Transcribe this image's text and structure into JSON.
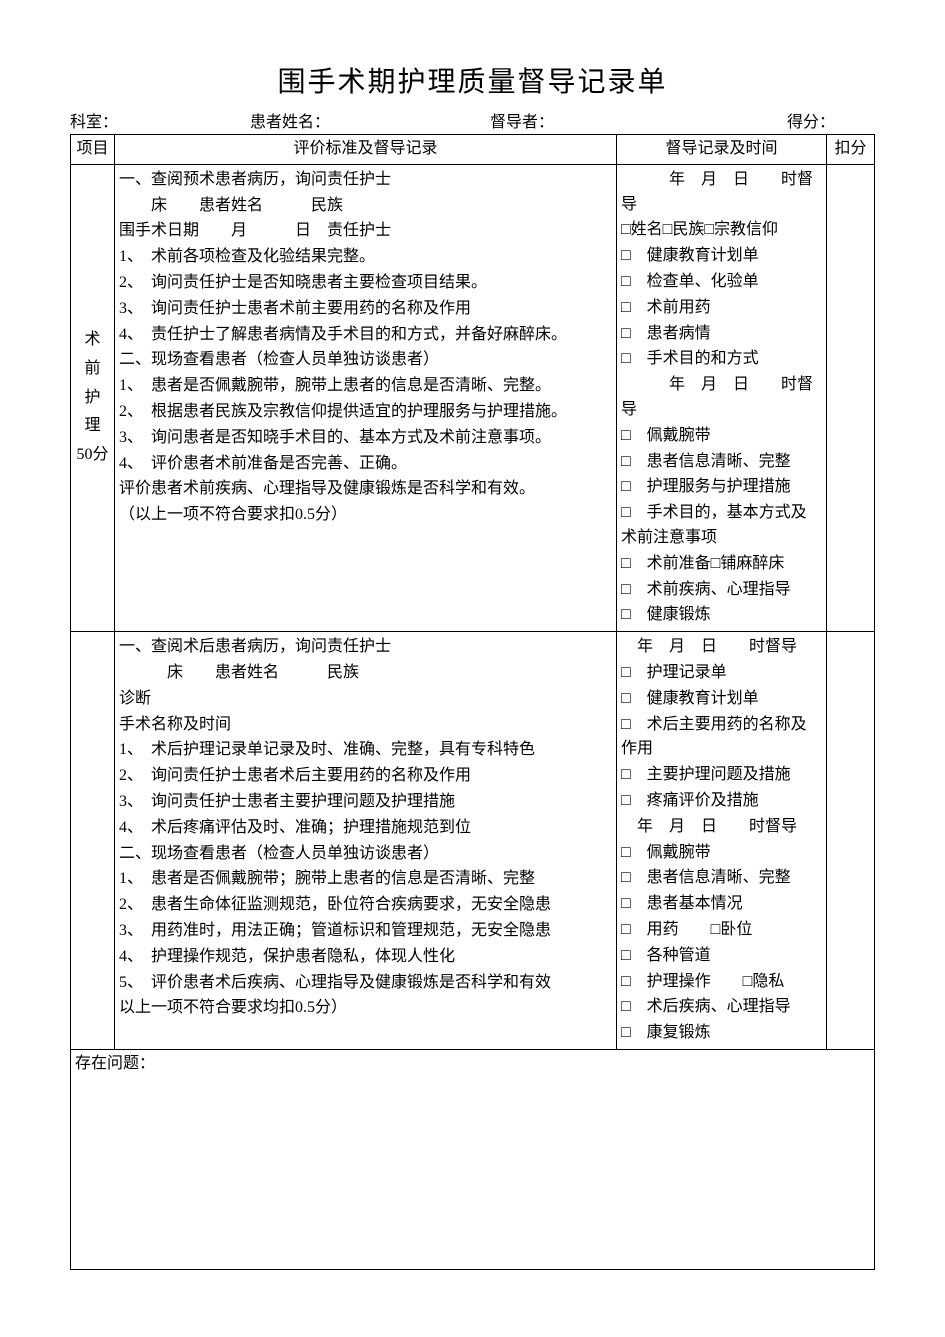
{
  "title": "围手术期护理质量督导记录单",
  "header": {
    "dept_label": "科室：",
    "patient_label": "患者姓名：",
    "supervisor_label": "督导者：",
    "score_label": "得分：",
    "underline": "＿＿"
  },
  "table_headers": {
    "project": "项目",
    "criteria": "评价标准及督导记录",
    "record": "督导记录及时间",
    "deduct": "扣分"
  },
  "section1": {
    "label_lines": [
      "术",
      "前",
      "护",
      "理",
      "50分"
    ],
    "criteria": [
      "一、查阅预术患者病历，询问责任护士",
      "　　床　　患者姓名　　　民族",
      "围手术日期　　月　　　日　责任护士",
      "1、　术前各项检查及化验结果完整。",
      "2、　询问责任护士是否知晓患者主要检查项目结果。",
      "3、　询问责任护士患者术前主要用药的名称及作用",
      "4、　责任护士了解患者病情及手术目的和方式，并备好麻醉床。",
      "二、现场查看患者（检查人员单独访谈患者）",
      "1、　患者是否佩戴腕带，腕带上患者的信息是否清晰、完整。",
      "2、　根据患者民族及宗教信仰提供适宜的护理服务与护理措施。",
      "3、　询问患者是否知晓手术目的、基本方式及术前注意事项。",
      "4、　评价患者术前准备是否完善、正确。",
      "评价患者术前疾病、心理指导及健康锻炼是否科学和有效。",
      "（以上一项不符合要求扣0.5分）"
    ],
    "record": [
      "　　　年　月　日　　时督导",
      "□姓名□民族□宗教信仰",
      "□　健康教育计划单",
      "□　检查单、化验单",
      "□　术前用药",
      "□　患者病情",
      "□　手术目的和方式",
      "",
      "　　　年　月　日　　时督导",
      "□　佩戴腕带",
      "□　患者信息清晰、完整",
      "□　护理服务与护理措施",
      "□　手术目的，基本方式及术前注意事项",
      "□　术前准备□铺麻醉床",
      "□　术前疾病、心理指导",
      "□　健康锻炼"
    ]
  },
  "section2": {
    "criteria": [
      "一、查阅术后患者病历，询问责任护士",
      "　　　床　　患者姓名　　　民族",
      "诊断",
      "手术名称及时间",
      "1、　术后护理记录单记录及时、准确、完整，具有专科特色",
      "2、　询问责任护士患者术后主要用药的名称及作用",
      "3、　询问责任护士患者主要护理问题及护理措施",
      "4、　术后疼痛评估及时、准确；护理措施规范到位",
      "二、现场查看患者（检查人员单独访谈患者）",
      "1、　患者是否佩戴腕带；腕带上患者的信息是否清晰、完整",
      "2、　患者生命体征监测规范，卧位符合疾病要求，无安全隐患",
      "3、　用药准时，用法正确；管道标识和管理规范，无安全隐患",
      "4、　护理操作规范，保护患者隐私，体现人性化",
      "5、　评价患者术后疾病、心理指导及健康锻炼是否科学和有效",
      "以上一项不符合要求均扣0.5分）"
    ],
    "record": [
      "　年　月　日　　时督导",
      "□　护理记录单",
      "□　健康教育计划单",
      "□　术后主要用药的名称及作用",
      "□　主要护理问题及措施",
      "□　疼痛评价及措施",
      "",
      "　年　月　日　　时督导",
      "□　佩戴腕带",
      "□　患者信息清晰、完整",
      "□　患者基本情况",
      "□　用药　　□卧位",
      "□　各种管道",
      "□　护理操作　　□隐私",
      "□　术后疾病、心理指导",
      "□　康复锻炼"
    ]
  },
  "problems_label": "存在问题："
}
